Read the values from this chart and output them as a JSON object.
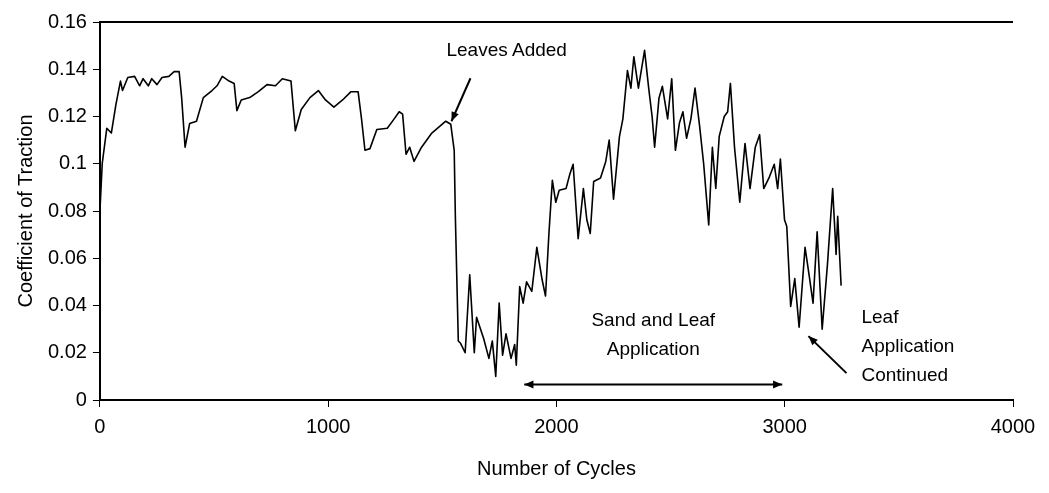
{
  "chart_data": {
    "type": "line",
    "xlabel": "Number of Cycles",
    "ylabel": "Coefficient of Traction",
    "xlim": [
      0,
      4000
    ],
    "xticks": [
      0,
      1000,
      2000,
      3000,
      4000
    ],
    "ylim": [
      0,
      0.16
    ],
    "yticks": [
      0,
      0.02,
      0.04,
      0.06,
      0.08,
      0.1,
      0.12,
      0.14,
      0.16
    ],
    "grid": false,
    "legend": false,
    "marker": "none",
    "line_style": "solid",
    "annotations": [
      {
        "text": "Leaves Added",
        "x": 1540,
        "y": 0.118
      },
      "Sand and Leaf Application",
      "Leaf Application Continued"
    ],
    "series": [
      {
        "color": "#000000",
        "x": [
          0,
          10,
          30,
          50,
          70,
          90,
          99,
          122,
          152,
          174,
          189,
          212,
          227,
          250,
          272,
          302,
          325,
          347,
          358,
          373,
          393,
          423,
          453,
          491,
          513,
          536,
          566,
          588,
          600,
          619,
          656,
          694,
          732,
          769,
          799,
          837,
          856,
          882,
          920,
          957,
          988,
          1025,
          1063,
          1100,
          1131,
          1146,
          1161,
          1183,
          1213,
          1259,
          1289,
          1311,
          1326,
          1341,
          1357,
          1376,
          1409,
          1454,
          1515,
          1537,
          1552,
          1557,
          1570,
          1580,
          1600,
          1620,
          1640,
          1650,
          1681,
          1704,
          1719,
          1734,
          1749,
          1764,
          1779,
          1801,
          1817,
          1824,
          1839,
          1854,
          1869,
          1892,
          1914,
          1937,
          1952,
          1967,
          1982,
          1997,
          2012,
          2042,
          2058,
          2073,
          2095,
          2118,
          2133,
          2148,
          2163,
          2193,
          2216,
          2231,
          2250,
          2276,
          2291,
          2311,
          2326,
          2339,
          2359,
          2386,
          2404,
          2419,
          2430,
          2449,
          2464,
          2487,
          2505,
          2521,
          2539,
          2554,
          2570,
          2589,
          2607,
          2627,
          2645,
          2667,
          2683,
          2698,
          2713,
          2735,
          2750,
          2762,
          2780,
          2803,
          2826,
          2848,
          2871,
          2890,
          2908,
          2931,
          2954,
          2969,
          2981,
          2999,
          3009,
          3026,
          3044,
          3063,
          3089,
          3109,
          3124,
          3142,
          3164,
          3187,
          3210,
          3225,
          3232,
          3247
        ],
        "values": [
          0.08,
          0.1,
          0.115,
          0.113,
          0.125,
          0.135,
          0.131,
          0.1365,
          0.137,
          0.133,
          0.136,
          0.133,
          0.136,
          0.1335,
          0.1365,
          0.137,
          0.139,
          0.139,
          0.128,
          0.107,
          0.117,
          0.118,
          0.128,
          0.131,
          0.133,
          0.137,
          0.135,
          0.134,
          0.1225,
          0.127,
          0.128,
          0.1305,
          0.1335,
          0.133,
          0.136,
          0.135,
          0.114,
          0.123,
          0.128,
          0.131,
          0.127,
          0.124,
          0.127,
          0.1305,
          0.1305,
          0.119,
          0.1057,
          0.1064,
          0.1145,
          0.115,
          0.119,
          0.122,
          0.121,
          0.104,
          0.107,
          0.101,
          0.107,
          0.113,
          0.118,
          0.1167,
          0.1057,
          0.078,
          0.025,
          0.024,
          0.02,
          0.053,
          0.02,
          0.035,
          0.026,
          0.0176,
          0.025,
          0.01,
          0.041,
          0.019,
          0.028,
          0.0176,
          0.0235,
          0.0147,
          0.048,
          0.041,
          0.05,
          0.046,
          0.0646,
          0.051,
          0.044,
          0.0705,
          0.093,
          0.0837,
          0.0888,
          0.0895,
          0.0954,
          0.0998,
          0.0683,
          0.0895,
          0.0763,
          0.0705,
          0.0925,
          0.094,
          0.101,
          0.11,
          0.085,
          0.1116,
          0.119,
          0.1394,
          0.132,
          0.1453,
          0.132,
          0.148,
          0.132,
          0.12,
          0.107,
          0.1277,
          0.1328,
          0.119,
          0.136,
          0.1057,
          0.1174,
          0.122,
          0.1108,
          0.119,
          0.132,
          0.116,
          0.0998,
          0.0741,
          0.107,
          0.0895,
          0.1116,
          0.12,
          0.122,
          0.134,
          0.107,
          0.0837,
          0.1086,
          0.0895,
          0.107,
          0.1123,
          0.0895,
          0.094,
          0.0998,
          0.0895,
          0.102,
          0.0763,
          0.0734,
          0.0396,
          0.0514,
          0.0308,
          0.0646,
          0.0514,
          0.041,
          0.0712,
          0.03,
          0.0572,
          0.0895,
          0.0616,
          0.0778,
          0.0484
        ]
      }
    ]
  }
}
